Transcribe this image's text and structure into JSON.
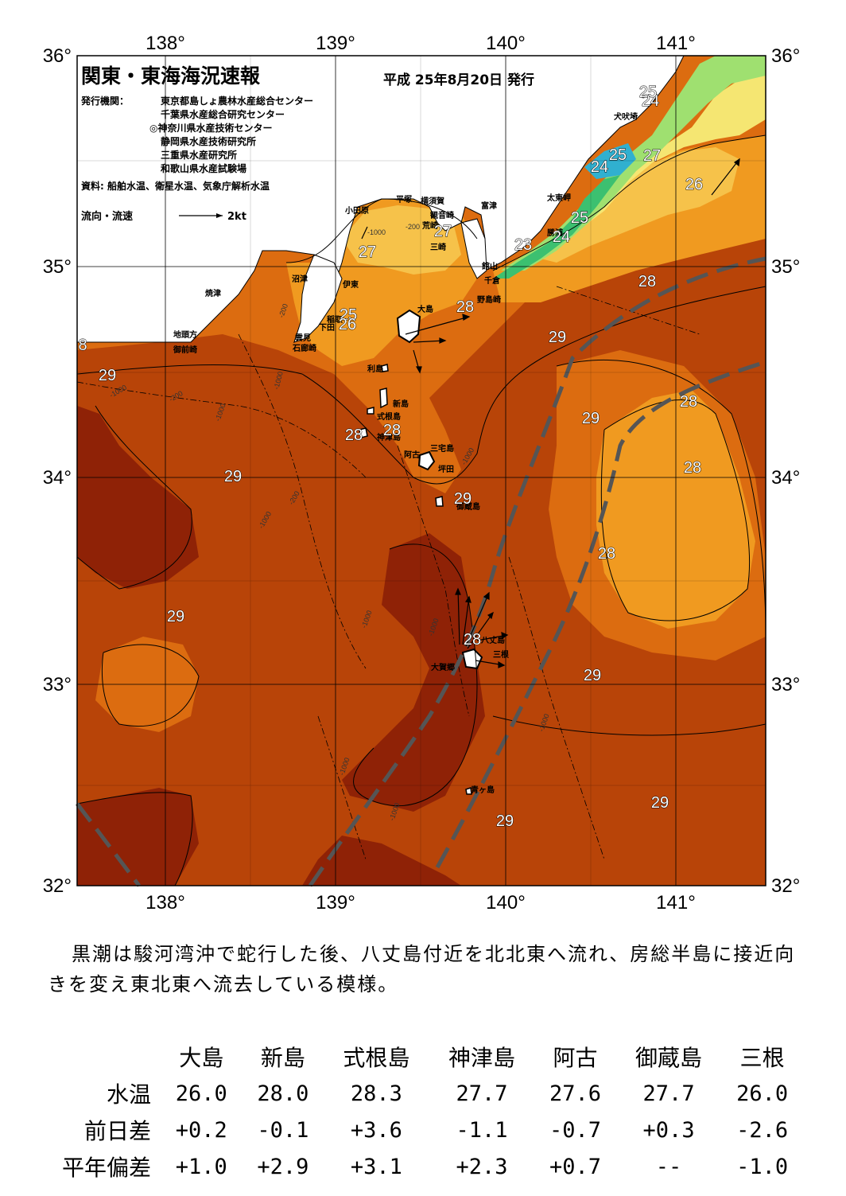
{
  "title": "関東・東海海況速報",
  "date": "平成 25年8月20日 発行",
  "publisher_label": "発行機関：",
  "publishers": [
    "東京都島しょ農林水産総合センター",
    "千葉県水産総合研究センター",
    "◎神奈川県水産技術センター",
    "静岡県水産技術研究所",
    "三重県水産研究所",
    "和歌山県水産試験場"
  ],
  "sources": "資料: 船舶水温、衛星水温、気象庁解析水温",
  "current_legend": "流向・流速",
  "current_scale": "2kt",
  "lon_labels": [
    "138°",
    "139°",
    "140°",
    "141°"
  ],
  "lat_labels": [
    "36°",
    "35°",
    "34°",
    "33°",
    "32°"
  ],
  "colors": {
    "t29": "#b84408",
    "t30": "#8f2206",
    "t28": "#dc6c10",
    "t27": "#f09a20",
    "t26": "#f6c24a",
    "t25": "#f5e672",
    "t24": "#9fe070",
    "t23": "#3cc070",
    "t22": "#30b0d0",
    "land": "#ffffff",
    "kuroshio": "#555555"
  },
  "places": {
    "odawara": "小田原",
    "hiratsuka": "平塚",
    "yokosuka": "横須賀",
    "kannonzaki": "観音崎",
    "arasaki": "荒崎",
    "misaki": "三崎",
    "futtsu": "富津",
    "tateyama": "館山",
    "chikura": "千倉",
    "nojimazaki": "野島崎",
    "taitomisaki": "太東岬",
    "katsuura": "勝浦",
    "inubosaki": "犬吠埼",
    "numazu": "沼津",
    "ito": "伊東",
    "inatori": "稲取",
    "shimoda": "下田",
    "kumomi": "雲見",
    "irozaki": "石廊崎",
    "yaizu": "焼津",
    "jitokata": "地頭方",
    "omaezaki": "御前崎",
    "oshima": "大島",
    "toshima": "利島",
    "niijima": "新島",
    "shikinejima": "式根島",
    "kozushima": "神津島",
    "miyakejima": "三宅島",
    "ako": "阿古",
    "tsubota": "坪田",
    "mikurajima": "御蔵島",
    "hachijojima": "八丈島",
    "okago": "大賀郷",
    "mitsune": "三根",
    "aogashima": "青ヶ島"
  },
  "isotherm_labels": [
    "29",
    "29",
    "29",
    "29",
    "29",
    "29",
    "29",
    "29",
    "28",
    "28",
    "28",
    "28",
    "28",
    "28",
    "28",
    "27",
    "27",
    "27",
    "26",
    "25",
    "25",
    "25",
    "24",
    "24",
    "25",
    "23",
    "24",
    "8",
    "26",
    "28",
    "28",
    "29"
  ],
  "depth_labels": [
    "-200",
    "-1000",
    "-200",
    "-1000",
    "-1000",
    "-1000",
    "-200",
    "-1000",
    "-1000",
    "-200",
    "-1000",
    "-1000",
    "-1000",
    "-1000",
    "-1000"
  ],
  "summary": "黒潮は駿河湾沖で蛇行した後、八丈島付近を北北東へ流れ、房総半島に接近向きを変え東北東へ流去している模様。",
  "table": {
    "headers": [
      "",
      "大島",
      "新島",
      "式根島",
      "神津島",
      "阿古",
      "御蔵島",
      "三根"
    ],
    "rows": [
      {
        "label": "水温",
        "values": [
          "26.0",
          "28.0",
          "28.3",
          "27.7",
          "27.6",
          "27.7",
          "26.0"
        ]
      },
      {
        "label": "前日差",
        "values": [
          "+0.2",
          "-0.1",
          "+3.6",
          "-1.1",
          "-0.7",
          "+0.3",
          "-2.6"
        ]
      },
      {
        "label": "平年偏差",
        "values": [
          "+1.0",
          "+2.9",
          "+3.1",
          "+2.3",
          "+0.7",
          "--",
          "-1.0"
        ]
      }
    ]
  }
}
